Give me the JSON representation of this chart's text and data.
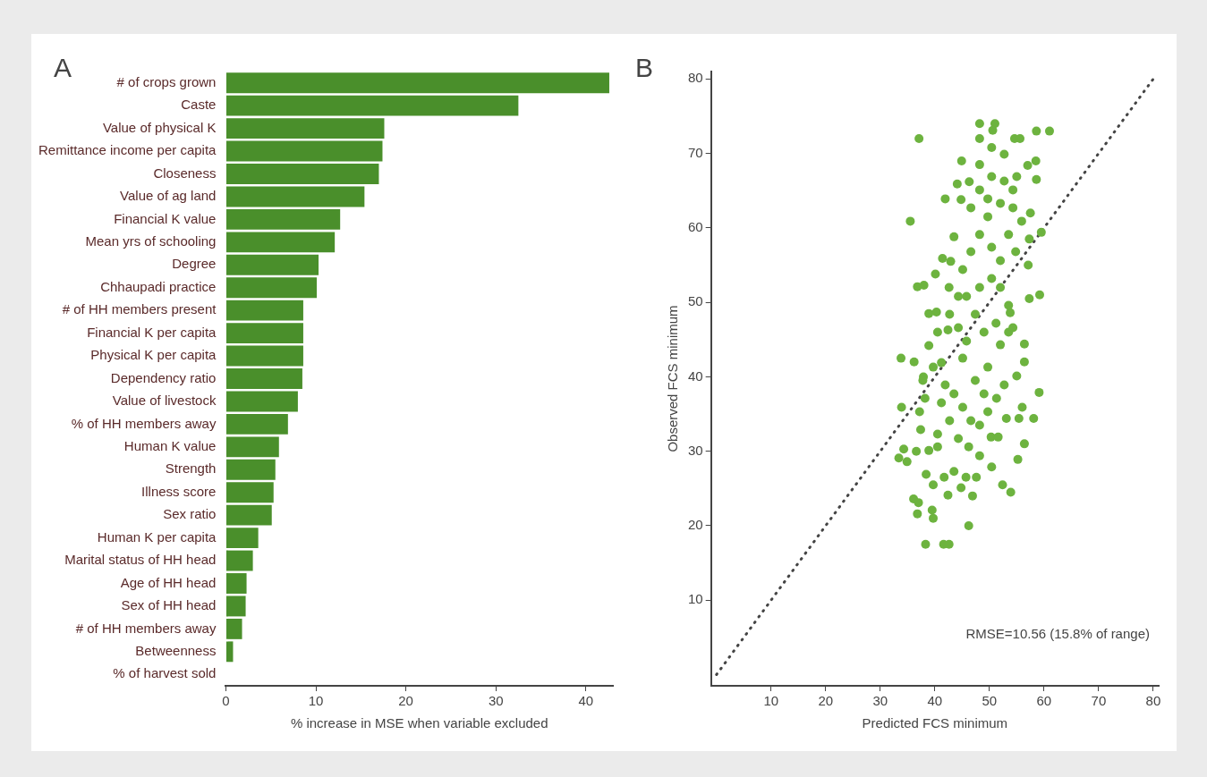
{
  "chart_data": [
    {
      "type": "bar",
      "orientation": "horizontal",
      "xlabel": "% increase in MSE when variable excluded",
      "annotations": [
        "A"
      ],
      "categories": [
        "# of crops grown",
        "Caste",
        "Value of physical K",
        "Remittance income per capita",
        "Closeness",
        "Value of ag land",
        "Financial K value",
        "Mean yrs of schooling",
        "Degree",
        "Chhaupadi practice",
        "# of HH members present",
        "Financial K per capita",
        "Physical K per capita",
        "Dependency ratio",
        "Value of livestock",
        "% of HH members away",
        "Human K value",
        "Strength",
        "Illness score",
        "Sex ratio",
        "Human K per capita",
        "Marital status of HH head",
        "Age of HH head",
        "Sex of HH head",
        "# of HH members away",
        "Betweenness",
        "% of harvest sold"
      ],
      "values": [
        42.6,
        32.5,
        17.6,
        17.4,
        17.0,
        15.4,
        12.7,
        12.1,
        10.3,
        10.1,
        8.6,
        8.6,
        8.6,
        8.5,
        8.0,
        6.9,
        5.9,
        5.5,
        5.3,
        5.1,
        3.6,
        3.0,
        2.3,
        2.2,
        1.8,
        0.8,
        null
      ],
      "color": "#4a8f2b",
      "xlim": [
        0,
        43
      ],
      "xticks": [
        0,
        10,
        20,
        30,
        40
      ],
      "grid": false,
      "legend": false
    },
    {
      "type": "scatter",
      "xlabel": "Predicted FCS minimum",
      "ylabel": "Observed FCS minimum",
      "annotations": [
        "B",
        "RMSE=10.56 (15.8% of range)"
      ],
      "xlim": [
        -1,
        81
      ],
      "ylim": [
        -1.5,
        81
      ],
      "xticks": [
        10,
        20,
        30,
        40,
        50,
        60,
        70,
        80
      ],
      "yticks": [
        10,
        20,
        30,
        40,
        50,
        60,
        70,
        80
      ],
      "grid": false,
      "legend": false,
      "series": [
        {
          "type": "line",
          "color": "#444444",
          "line_style": "dotted",
          "marker": "none",
          "x": [
            0,
            80
          ],
          "values": [
            0,
            80
          ]
        },
        {
          "type": "scatter",
          "color": "#6db33f",
          "marker": "circle",
          "x": [
            48.2,
            51.0,
            50.6,
            48.2,
            54.6,
            55.6,
            58.6,
            61.0,
            37.1,
            44.9,
            48.2,
            50.4,
            52.7,
            57.0,
            58.5,
            58.6,
            44.1,
            46.3,
            41.9,
            44.8,
            35.5,
            43.5,
            57.5,
            59.5,
            57.3,
            54.8,
            57.1,
            41.4,
            42.9,
            40.1,
            36.8,
            38.0,
            42.6,
            59.2,
            57.3,
            53.8,
            38.9,
            40.3,
            33.8,
            36.2,
            56.4,
            56.4,
            37.9,
            59.1,
            33.9,
            56.0,
            37.2,
            58.1,
            55.4,
            53.1,
            56.4,
            50.3,
            51.6,
            33.4,
            34.9,
            55.2,
            50.4,
            38.4,
            39.7,
            41.7,
            43.5,
            45.7,
            47.6,
            52.4,
            53.9,
            42.4,
            44.8,
            46.9,
            36.1,
            37.0,
            36.8,
            39.5,
            39.7,
            46.2,
            38.3,
            41.6,
            42.6,
            34.3,
            36.6,
            38.9,
            40.5,
            37.4,
            38.2,
            37.8,
            39.7,
            41.2,
            40.5,
            42.4,
            44.3,
            45.8,
            45.1,
            41.9,
            43.5,
            45.1,
            46.6,
            48.2,
            49.7,
            51.3,
            49.0,
            47.4,
            49.7,
            52.0,
            53.5,
            51.2,
            49.0,
            47.4,
            45.8,
            48.2,
            50.4,
            52.0,
            50.4,
            48.2,
            46.6,
            45.1,
            49.7,
            52.0,
            54.3,
            55.0,
            52.7,
            50.4,
            48.2,
            46.6,
            49.7,
            54.3,
            55.9,
            53.5,
            52.0,
            53.5,
            54.3,
            55.0,
            52.7,
            41.2,
            42.7,
            44.3,
            40.5,
            46.2,
            48.2,
            38.9,
            42.7,
            44.3
          ],
          "values": [
            74.0,
            74.0,
            73.1,
            72.0,
            72.0,
            72.0,
            73.0,
            73.0,
            72.0,
            69.0,
            68.5,
            70.8,
            69.9,
            68.4,
            69.0,
            66.5,
            65.9,
            66.2,
            63.9,
            63.8,
            60.9,
            58.8,
            62.0,
            59.4,
            58.5,
            56.8,
            55.0,
            55.9,
            55.5,
            53.8,
            52.1,
            52.3,
            52.0,
            51.0,
            50.5,
            48.6,
            48.5,
            48.7,
            42.5,
            42.0,
            44.4,
            42.0,
            40.0,
            37.9,
            35.9,
            35.9,
            35.3,
            34.4,
            34.4,
            34.4,
            31.0,
            31.9,
            31.9,
            29.1,
            28.6,
            28.9,
            27.9,
            26.9,
            25.5,
            26.5,
            27.3,
            26.5,
            26.5,
            25.5,
            24.5,
            24.1,
            25.1,
            24.0,
            23.6,
            23.1,
            21.6,
            22.1,
            21.0,
            20.0,
            17.5,
            17.5,
            17.5,
            30.3,
            30.0,
            30.1,
            30.6,
            32.9,
            37.1,
            39.5,
            41.3,
            41.9,
            46.0,
            46.3,
            46.6,
            44.8,
            42.5,
            38.9,
            37.7,
            35.9,
            34.1,
            33.5,
            35.3,
            37.1,
            37.7,
            39.5,
            41.3,
            44.3,
            46.0,
            47.2,
            46.0,
            48.4,
            50.8,
            52.0,
            53.2,
            55.6,
            57.4,
            59.1,
            56.8,
            54.4,
            61.5,
            63.3,
            65.1,
            66.9,
            66.3,
            66.9,
            65.1,
            62.7,
            63.9,
            62.7,
            60.9,
            59.1,
            52.0,
            49.6,
            46.6,
            40.1,
            38.9,
            36.5,
            34.1,
            31.7,
            32.3,
            30.6,
            29.4,
            44.2,
            48.4,
            50.8
          ]
        }
      ]
    }
  ]
}
